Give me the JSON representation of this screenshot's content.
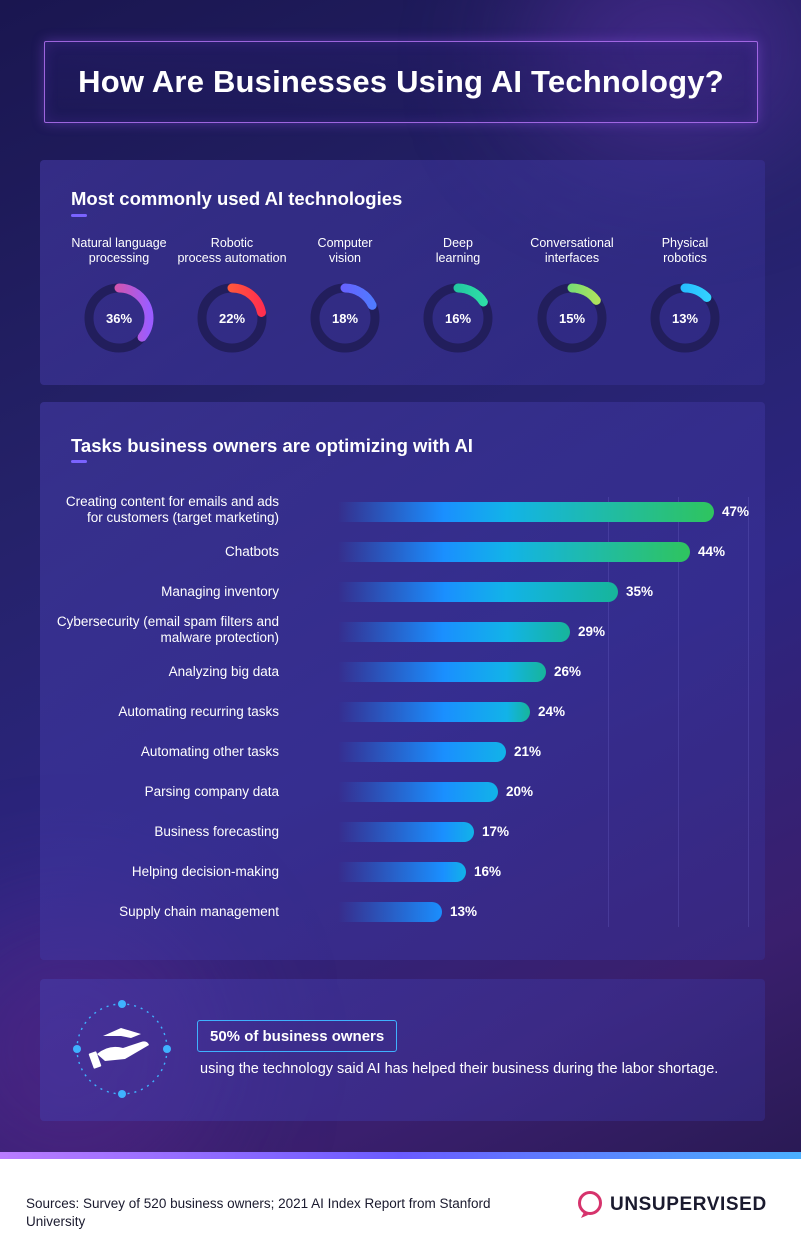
{
  "title": "How Are Businesses Using AI Technology?",
  "technologies": {
    "heading": "Most commonly used AI technologies",
    "items": [
      {
        "label_line1": "Natural language",
        "label_line2": "processing",
        "value": 36,
        "value_label": "36%",
        "color_start": "#ff4f6d",
        "color_end": "#9b5cff"
      },
      {
        "label_line1": "Robotic",
        "label_line2": "process automation",
        "value": 22,
        "value_label": "22%",
        "color_start": "#ff7a2a",
        "color_end": "#ff2f4f"
      },
      {
        "label_line1": "Computer",
        "label_line2": "vision",
        "value": 18,
        "value_label": "18%",
        "color_start": "#7b4dff",
        "color_end": "#4f7bff"
      },
      {
        "label_line1": "Deep",
        "label_line2": "learning",
        "value": 16,
        "value_label": "16%",
        "color_start": "#18b29a",
        "color_end": "#2fe0a8"
      },
      {
        "label_line1": "Conversational",
        "label_line2": "interfaces",
        "value": 15,
        "value_label": "15%",
        "color_start": "#3fd98a",
        "color_end": "#b7e35a"
      },
      {
        "label_line1": "Physical",
        "label_line2": "robotics",
        "value": 13,
        "value_label": "13%",
        "color_start": "#18a8ff",
        "color_end": "#36d6ff"
      }
    ]
  },
  "chart_data": {
    "type": "bar",
    "title": "Tasks business owners are optimizing with AI",
    "categories": [
      "Creating content for emails and ads for customers (target marketing)",
      "Chatbots",
      "Managing inventory",
      "Cybersecurity (email spam filters and malware protection)",
      "Analyzing big data",
      "Automating recurring tasks",
      "Automating other tasks",
      "Parsing company data",
      "Business forecasting",
      "Helping decision-making",
      "Supply chain management"
    ],
    "label_lines": [
      [
        "Creating content for emails and ads",
        "for customers (target marketing)"
      ],
      [
        "Chatbots"
      ],
      [
        "Managing inventory"
      ],
      [
        "Cybersecurity (email spam filters and",
        "malware protection)"
      ],
      [
        "Analyzing big data"
      ],
      [
        "Automating recurring tasks"
      ],
      [
        "Automating other tasks"
      ],
      [
        "Parsing company data"
      ],
      [
        "Business forecasting"
      ],
      [
        "Helping decision-making"
      ],
      [
        "Supply chain management"
      ]
    ],
    "values": [
      47,
      44,
      35,
      29,
      26,
      24,
      21,
      20,
      17,
      16,
      13
    ],
    "value_labels": [
      "47%",
      "44%",
      "35%",
      "29%",
      "26%",
      "24%",
      "21%",
      "20%",
      "17%",
      "16%",
      "13%"
    ],
    "xlim": [
      0,
      50
    ],
    "orientation": "horizontal"
  },
  "stat": {
    "highlight": "50% of business owners",
    "text": "using the technology said AI has helped their business during the labor shortage.",
    "icon": "hand-giving-icon"
  },
  "footer": {
    "source": "Sources: Survey of 520 business owners; 2021 AI Index Report from Stanford University",
    "logo": "UNSUPERVISED",
    "logo_color": "#d6336c"
  }
}
